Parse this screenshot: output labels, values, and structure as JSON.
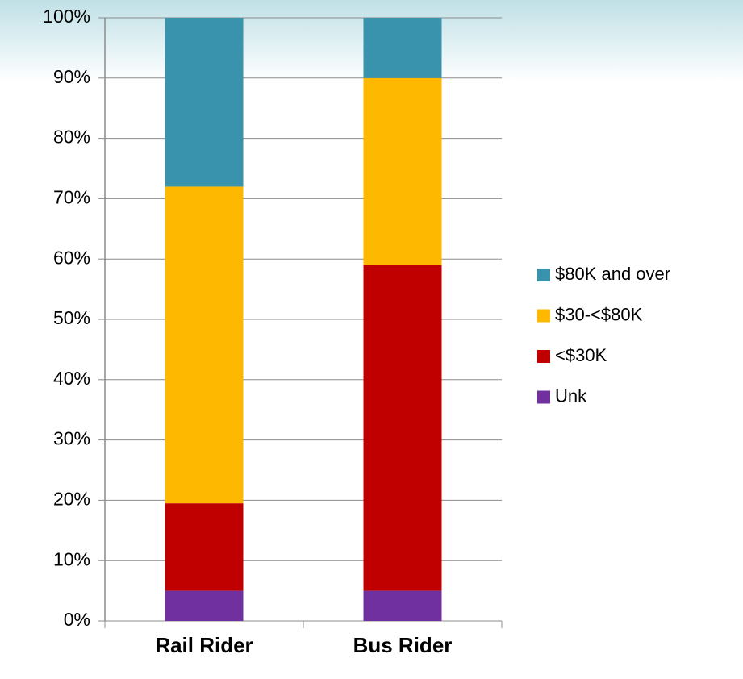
{
  "chart_data": {
    "type": "stacked_bar",
    "categories": [
      "Rail Rider",
      "Bus Rider"
    ],
    "series": [
      {
        "name": "$80K and over",
        "color": "#3a93ad",
        "values": [
          28,
          10
        ]
      },
      {
        "name": "$30-<$80K",
        "color": "#ffb800",
        "values": [
          52.5,
          31
        ]
      },
      {
        "name": "<$30K",
        "color": "#c00000",
        "values": [
          14.5,
          54
        ]
      },
      {
        "name": "Unk",
        "color": "#7030a0",
        "values": [
          5,
          5
        ]
      }
    ],
    "ylim": [
      0,
      100
    ],
    "yticks": [
      {
        "value": 0,
        "label": "0%"
      },
      {
        "value": 10,
        "label": "10%"
      },
      {
        "value": 20,
        "label": "20%"
      },
      {
        "value": 30,
        "label": "30%"
      },
      {
        "value": 40,
        "label": "40%"
      },
      {
        "value": 50,
        "label": "50%"
      },
      {
        "value": 60,
        "label": "60%"
      },
      {
        "value": 70,
        "label": "70%"
      },
      {
        "value": 80,
        "label": "80%"
      },
      {
        "value": 90,
        "label": "90%"
      },
      {
        "value": 100,
        "label": "100%"
      }
    ],
    "grid": true,
    "legend": "right"
  }
}
